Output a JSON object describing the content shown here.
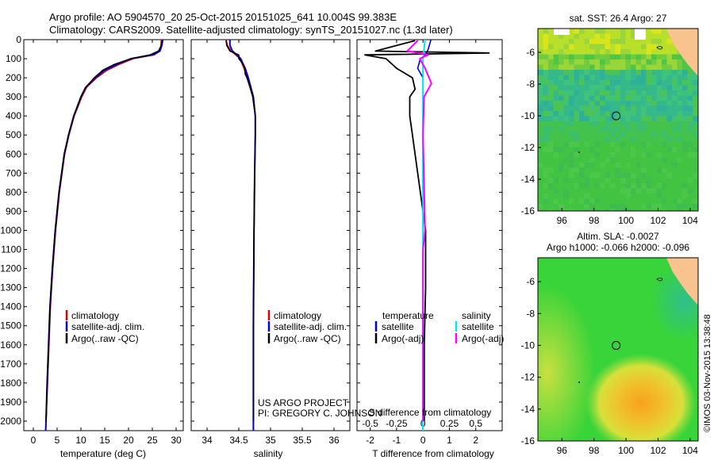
{
  "header": {
    "line1": "Argo profile: AO 5904570_20 25-Oct-2015 20151025_641 10.004S 99.383E",
    "line2": "Climatology: CARS2009. Satellite-adjusted climatology: synTS_20151027.nc (1.3d later)"
  },
  "colors": {
    "climatology": "#dd0000",
    "satellite": "#0000dd",
    "argo": "#000000",
    "sal_satellite": "#00e5ee",
    "sal_argo": "#ff00ff",
    "land": "#f9c38f",
    "sst_main": "#42c342",
    "sla_main": "#39d439"
  },
  "chart_data": [
    {
      "type": "line",
      "name": "temperature-profile",
      "xlabel": "temperature (deg C)",
      "ylabel": "",
      "xlim": [
        -2,
        31.5
      ],
      "ylim": [
        2050,
        0
      ],
      "xticks": [
        "0",
        "5",
        "10",
        "15",
        "20",
        "25",
        "30"
      ],
      "xtick_values": [
        0,
        5,
        10,
        15,
        20,
        25,
        30
      ],
      "yticks": [
        "0",
        "100",
        "200",
        "300",
        "400",
        "500",
        "600",
        "700",
        "800",
        "900",
        "1000",
        "1100",
        "1200",
        "1300",
        "1400",
        "1500",
        "1600",
        "1700",
        "1800",
        "1900",
        "2000"
      ],
      "ytick_values": [
        0,
        100,
        200,
        300,
        400,
        500,
        600,
        700,
        800,
        900,
        1000,
        1100,
        1200,
        1300,
        1400,
        1500,
        1600,
        1700,
        1800,
        1900,
        2000
      ],
      "legend": [
        "climatology",
        "satellite-adj. clim.",
        "Argo(..raw -QC)"
      ],
      "series": [
        {
          "name": "climatology",
          "depth": [
            0,
            30,
            60,
            80,
            100,
            130,
            160,
            200,
            250,
            300,
            400,
            500,
            600,
            800,
            1000,
            1200,
            1400,
            1600,
            1800,
            2050
          ],
          "values": [
            26.9,
            26.8,
            26.6,
            25.4,
            21,
            18,
            15.5,
            13.3,
            11.2,
            10.2,
            8.6,
            7.5,
            6.6,
            5.5,
            4.7,
            4.1,
            3.6,
            3.3,
            3.0,
            2.6
          ]
        },
        {
          "name": "satellite-adj. clim.",
          "depth": [
            0,
            30,
            60,
            80,
            100,
            130,
            160,
            200,
            250,
            300,
            400,
            500,
            600,
            800,
            1000,
            1200,
            1400,
            1600,
            1800,
            2050
          ],
          "values": [
            27.2,
            27,
            26.6,
            25,
            20.5,
            17.5,
            15,
            13,
            11,
            10,
            8.5,
            7.4,
            6.5,
            5.4,
            4.6,
            4,
            3.5,
            3.2,
            2.9,
            2.6
          ]
        },
        {
          "name": "Argo(..raw -QC)",
          "depth": [
            5,
            30,
            60,
            80,
            100,
            130,
            160,
            200,
            250,
            300,
            400,
            500,
            600,
            800,
            1000,
            1200,
            1400,
            1600,
            1800,
            2000
          ],
          "values": [
            27,
            26.9,
            26.3,
            24.5,
            20.5,
            17,
            14.6,
            12.8,
            11,
            10,
            8.5,
            7.4,
            6.5,
            5.4,
            4.6,
            4,
            3.5,
            3.2,
            2.9,
            2.7
          ]
        }
      ]
    },
    {
      "type": "line",
      "name": "salinity-profile",
      "xlabel": "salinity",
      "xlim": [
        33.75,
        36.25
      ],
      "ylim": [
        2050,
        0
      ],
      "xticks": [
        "34",
        "34.5",
        "35",
        "35.5",
        "36"
      ],
      "xtick_values": [
        34,
        34.5,
        35,
        35.5,
        36
      ],
      "legend": [
        "climatology",
        "satellite-adj. clim.",
        "Argo(..raw -QC)"
      ],
      "series": [
        {
          "name": "climatology",
          "depth": [
            0,
            30,
            60,
            80,
            100,
            150,
            200,
            300,
            400,
            500,
            700,
            1000,
            1500,
            2050
          ],
          "values": [
            34.3,
            34.32,
            34.38,
            34.45,
            34.52,
            34.58,
            34.63,
            34.72,
            34.76,
            34.76,
            34.75,
            34.74,
            34.73,
            34.73
          ]
        },
        {
          "name": "satellite-adj. clim.",
          "depth": [
            0,
            30,
            60,
            80,
            100,
            150,
            200,
            300,
            400,
            500,
            700,
            1000,
            1500,
            2050
          ],
          "values": [
            34.36,
            34.36,
            34.4,
            34.47,
            34.53,
            34.6,
            34.65,
            34.73,
            34.76,
            34.76,
            34.75,
            34.74,
            34.73,
            34.73
          ]
        },
        {
          "name": "Argo(..raw -QC)",
          "depth": [
            5,
            30,
            60,
            80,
            100,
            120,
            150,
            180,
            200,
            250,
            300,
            400,
            500,
            700,
            1000,
            1500,
            2000
          ],
          "values": [
            34.3,
            34.31,
            34.36,
            34.5,
            34.5,
            34.55,
            34.6,
            34.6,
            34.63,
            34.68,
            34.72,
            34.76,
            34.76,
            34.75,
            34.74,
            34.73,
            34.73
          ]
        }
      ],
      "annotation_line1": "US ARGO PROJECT",
      "annotation_line2": "PI: GREGORY C. JOHNSON"
    },
    {
      "type": "line",
      "name": "difference-profile",
      "xlabel": "T difference from climatology",
      "top_axis_label": "S difference from climatology",
      "xlim": [
        -2.5,
        3.0
      ],
      "ylim": [
        2050,
        0
      ],
      "xticks": [
        "-2",
        "-1",
        "0",
        "1",
        "2"
      ],
      "xtick_values": [
        -2,
        -1,
        0,
        1,
        2
      ],
      "sticks": [
        "-0.5",
        "-0.25",
        "0",
        "0.25",
        "0.5"
      ],
      "stick_values": [
        -0.5,
        -0.25,
        0,
        0.25,
        0.5
      ],
      "legend_left_title": "temperature",
      "legend_right_title": "salinity",
      "legend": [
        "satellite",
        "Argo(-adj)",
        "satellite",
        "Argo(-adj)"
      ],
      "series": [
        {
          "name": "T satellite",
          "depth": [
            0,
            50,
            80,
            100,
            150,
            200,
            300,
            500,
            1000,
            1500,
            2050
          ],
          "values": [
            0.3,
            0.2,
            0.1,
            -0.1,
            -0.2,
            0,
            0,
            0,
            0,
            0,
            0
          ]
        },
        {
          "name": "T Argo(-adj)",
          "depth": [
            5,
            60,
            70,
            80,
            100,
            150,
            200,
            260,
            300,
            400,
            500,
            700,
            1000,
            1300,
            1600,
            2000
          ],
          "values": [
            -0.3,
            -1.8,
            2.5,
            -2.2,
            -1.4,
            -1.0,
            -0.4,
            -0.3,
            -0.5,
            -0.5,
            -0.4,
            -0.2,
            0.1,
            0.1,
            0.05,
            0.05
          ]
        },
        {
          "name": "S satellite",
          "depth": [
            0,
            100,
            200,
            300,
            500,
            1000,
            1500,
            2050
          ],
          "values": [
            0.02,
            0.0,
            0.0,
            0.0,
            0.0,
            0.0,
            0.0,
            0.0
          ]
        },
        {
          "name": "S Argo(-adj)",
          "depth": [
            5,
            60,
            80,
            100,
            150,
            230,
            300,
            500,
            1000,
            1100,
            1500,
            2000
          ],
          "values": [
            -0.05,
            -0.15,
            0.05,
            -0.03,
            0.02,
            0.08,
            0.01,
            0.0,
            0.02,
            0.0,
            0.0,
            0.0
          ]
        }
      ]
    },
    {
      "type": "heatmap",
      "name": "sst-map",
      "title": "sat. SST: 26.4 Argo: 27",
      "xlim": [
        94.5,
        104.5
      ],
      "ylim": [
        -16,
        -4.5
      ],
      "xticks": [
        "96",
        "98",
        "100",
        "102",
        "104"
      ],
      "xtick_values": [
        96,
        98,
        100,
        102,
        104
      ],
      "yticks": [
        "-6",
        "-8",
        "-10",
        "-12",
        "-14",
        "-16"
      ],
      "ytick_values": [
        -6,
        -8,
        -10,
        -12,
        -14,
        -16
      ],
      "float_lon": 99.383,
      "float_lat": -10.004
    },
    {
      "type": "heatmap",
      "name": "sla-map",
      "title_line1": "Altim. SLA: -0.0027",
      "title_line2": "Argo h1000: -0.066 h2000: -0.096",
      "xlim": [
        94.5,
        104.5
      ],
      "ylim": [
        -16,
        -4.5
      ],
      "xticks": [
        "96",
        "98",
        "100",
        "102",
        "104"
      ],
      "xtick_values": [
        96,
        98,
        100,
        102,
        104
      ],
      "yticks": [
        "-6",
        "-8",
        "-10",
        "-12",
        "-14",
        "-16"
      ],
      "ytick_values": [
        -6,
        -8,
        -10,
        -12,
        -14,
        -16
      ],
      "float_lon": 99.383,
      "float_lat": -10.004
    }
  ],
  "footer": {
    "stamp": "©IMOS 03-Nov-2015 13:38:48"
  }
}
